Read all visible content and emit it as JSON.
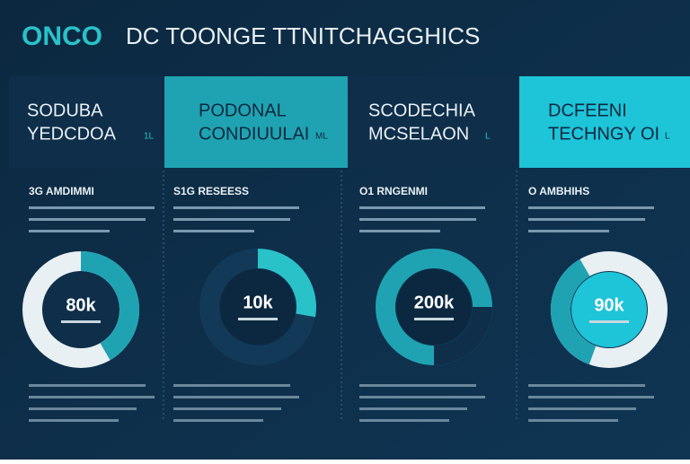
{
  "header": {
    "title_accent": "ONCO",
    "title": "DC TOONGE TTNITCHAGGHICS"
  },
  "panels": [
    {
      "heading": [
        "SODUBA",
        "YEDCDOA"
      ],
      "tag": "1L",
      "subheading": "3G AMDIMMI",
      "center_label": "80k"
    },
    {
      "heading": [
        "PODONAL",
        "CONDIUULAI"
      ],
      "tag": "ML",
      "subheading": "S1G RESEESS",
      "center_label": "10k"
    },
    {
      "heading": [
        "SCODECHIA",
        "MCSELAON"
      ],
      "tag": "L",
      "subheading": "O1 RNGENMI",
      "center_label": "200k"
    },
    {
      "heading": [
        "DCFEENI",
        "TECHNGY OI"
      ],
      "tag": "L",
      "subheading": "O AMBHIHS",
      "center_label": "90k"
    }
  ]
}
